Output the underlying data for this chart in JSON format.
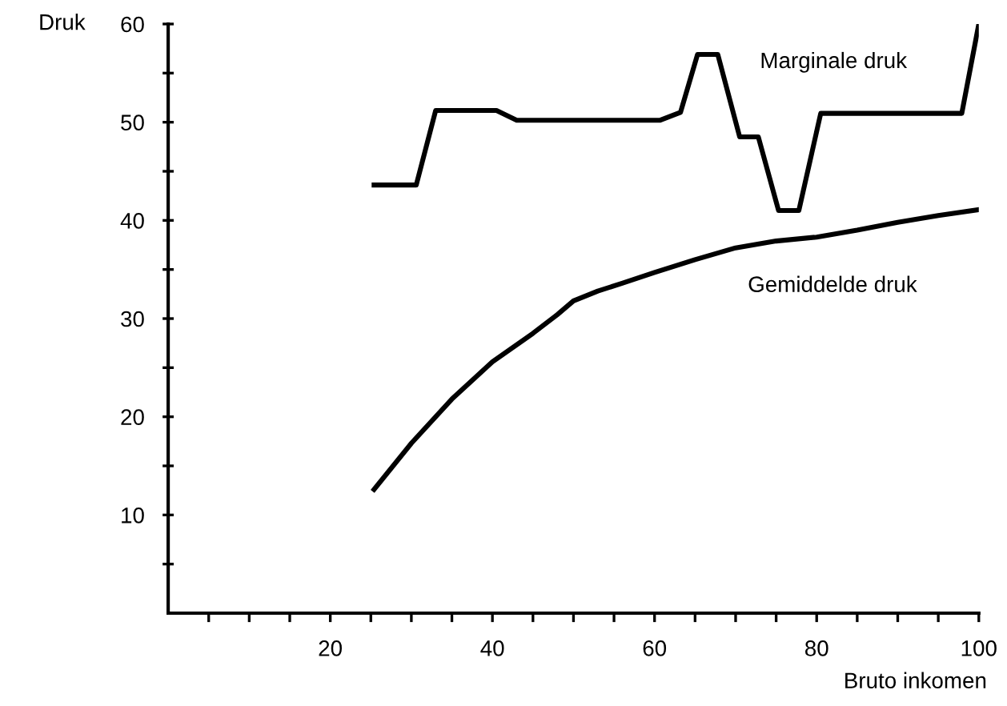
{
  "chart_data": {
    "type": "line",
    "xlabel": "Bruto inkomen",
    "ylabel": "Druk",
    "xlim": [
      0,
      100
    ],
    "ylim": [
      0,
      60
    ],
    "xticks": [
      {
        "value": 5,
        "label": null
      },
      {
        "value": 10,
        "label": null
      },
      {
        "value": 15,
        "label": null
      },
      20,
      {
        "value": 25,
        "label": null
      },
      {
        "value": 30,
        "label": null
      },
      {
        "value": 35,
        "label": null
      },
      40,
      {
        "value": 45,
        "label": null
      },
      {
        "value": 50,
        "label": null
      },
      {
        "value": 55,
        "label": null
      },
      60,
      {
        "value": 65,
        "label": null
      },
      {
        "value": 70,
        "label": null
      },
      {
        "value": 75,
        "label": null
      },
      80,
      {
        "value": 85,
        "label": null
      },
      {
        "value": 90,
        "label": null
      },
      {
        "value": 95,
        "label": null
      },
      100
    ],
    "yticks": [
      {
        "value": 5,
        "label": null
      },
      10,
      {
        "value": 15,
        "label": null
      },
      20,
      {
        "value": 25,
        "label": null
      },
      30,
      {
        "value": 35,
        "label": null
      },
      40,
      {
        "value": 45,
        "label": null
      },
      50,
      {
        "value": 55,
        "label": null
      },
      60
    ],
    "grid": false,
    "legend": false,
    "marker": "none",
    "line_style": "solid",
    "series": [
      {
        "name": "Marginale druk",
        "color": "#000000",
        "x": [
          25.4,
          30.6,
          33,
          40,
          40.5,
          43,
          60.7,
          63.2,
          65.3,
          67.8,
          70.5,
          72.8,
          75.3,
          77.8,
          80.5,
          97.9,
          100
        ],
        "values": [
          43.6,
          43.6,
          51.2,
          51.2,
          51.2,
          50.2,
          50.2,
          51,
          56.9,
          56.9,
          48.5,
          48.5,
          41,
          41,
          50.9,
          50.9,
          60
        ]
      },
      {
        "name": "Gemiddelde druk",
        "color": "#000000",
        "x": [
          25.4,
          30,
          35,
          40,
          45,
          48,
          50,
          53,
          56,
          60,
          65,
          70,
          75,
          80,
          85,
          90,
          95,
          100
        ],
        "values": [
          12.6,
          17.3,
          21.8,
          25.6,
          28.5,
          30.4,
          31.8,
          32.8,
          33.6,
          34.7,
          36.0,
          37.2,
          37.9,
          38.3,
          39.0,
          39.8,
          40.5,
          41.1
        ]
      }
    ]
  }
}
